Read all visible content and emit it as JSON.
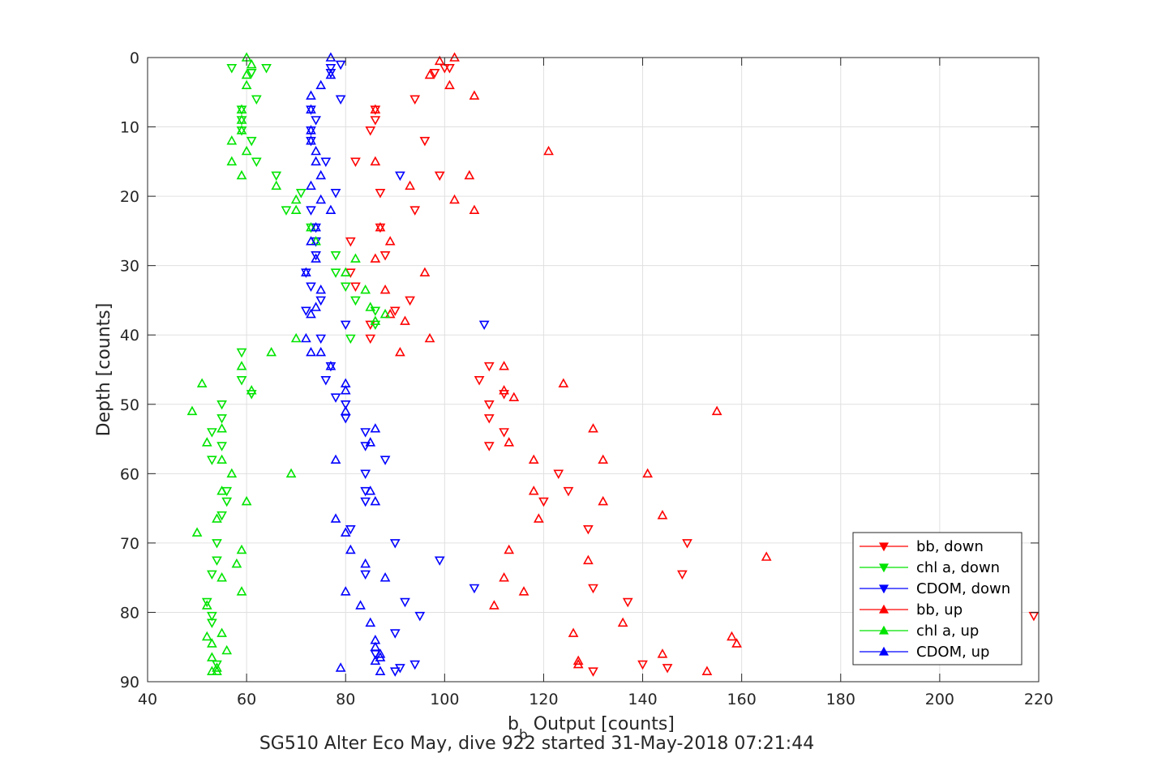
{
  "chart_data": {
    "type": "scatter",
    "title": "",
    "subtitle": "SG510 Alter Eco May, dive 922 started 31-May-2018 07:21:44",
    "xlabel_main": "b",
    "xlabel_sub": "b",
    "xlabel_rest": " Output [counts]",
    "ylabel": "Depth [counts]",
    "xlim": [
      40,
      220
    ],
    "ylim": [
      0,
      90
    ],
    "y_reversed": true,
    "grid": true,
    "legend_position": "bottom-right",
    "xticks": [
      "40",
      "60",
      "80",
      "100",
      "120",
      "140",
      "160",
      "180",
      "200",
      "220"
    ],
    "yticks": [
      "0",
      "10",
      "20",
      "30",
      "40",
      "50",
      "60",
      "70",
      "80",
      "90"
    ],
    "xtick_values": [
      40,
      60,
      80,
      100,
      120,
      140,
      160,
      180,
      200,
      220
    ],
    "ytick_values": [
      0,
      10,
      20,
      30,
      40,
      50,
      60,
      70,
      80,
      90
    ],
    "series": [
      {
        "name": "bb, down",
        "color": "#ff0000",
        "marker": "triangle-down",
        "points": [
          [
            100,
            1.5
          ],
          [
            101,
            1.5
          ],
          [
            98,
            2.2
          ],
          [
            94,
            6
          ],
          [
            86,
            7.5
          ],
          [
            86,
            9
          ],
          [
            85,
            10.5
          ],
          [
            96,
            12
          ],
          [
            82,
            15
          ],
          [
            99,
            17
          ],
          [
            87,
            19.5
          ],
          [
            94,
            22
          ],
          [
            87,
            24.5
          ],
          [
            81,
            26.5
          ],
          [
            88,
            28.5
          ],
          [
            81,
            31
          ],
          [
            82,
            33
          ],
          [
            93,
            35
          ],
          [
            90,
            36.5
          ],
          [
            85,
            38.5
          ],
          [
            85,
            40.5
          ],
          [
            109,
            44.5
          ],
          [
            107,
            46.5
          ],
          [
            112,
            48.5
          ],
          [
            109,
            50
          ],
          [
            109,
            52
          ],
          [
            112,
            54
          ],
          [
            109,
            56
          ],
          [
            123,
            60
          ],
          [
            125,
            62.5
          ],
          [
            120,
            64
          ],
          [
            129,
            68
          ],
          [
            149,
            70
          ],
          [
            148,
            74.5
          ],
          [
            130,
            76.5
          ],
          [
            137,
            78.5
          ],
          [
            219,
            80.5
          ],
          [
            140,
            87.5
          ],
          [
            145,
            88
          ],
          [
            130,
            88.5
          ]
        ]
      },
      {
        "name": "chl a, down",
        "color": "#00e400",
        "marker": "triangle-down",
        "points": [
          [
            57,
            1.5
          ],
          [
            64,
            1.5
          ],
          [
            61,
            2.2
          ],
          [
            62,
            6
          ],
          [
            59,
            7.5
          ],
          [
            59,
            9
          ],
          [
            59,
            10.5
          ],
          [
            61,
            12
          ],
          [
            62,
            15
          ],
          [
            66,
            17
          ],
          [
            71,
            19.5
          ],
          [
            68,
            22
          ],
          [
            73,
            24.5
          ],
          [
            74,
            26.5
          ],
          [
            78,
            28.5
          ],
          [
            78,
            31
          ],
          [
            80,
            33
          ],
          [
            82,
            35
          ],
          [
            86,
            36.5
          ],
          [
            86,
            38.5
          ],
          [
            81,
            40.5
          ],
          [
            59,
            42.5
          ],
          [
            59,
            46.5
          ],
          [
            61,
            48.5
          ],
          [
            55,
            50
          ],
          [
            55,
            52
          ],
          [
            53,
            54
          ],
          [
            55,
            56
          ],
          [
            53,
            58
          ],
          [
            56,
            62.5
          ],
          [
            56,
            64
          ],
          [
            55,
            66
          ],
          [
            54,
            70
          ],
          [
            54,
            72.5
          ],
          [
            53,
            74.5
          ],
          [
            52,
            78.5
          ],
          [
            53,
            80.5
          ],
          [
            53,
            81.5
          ],
          [
            54,
            87.5
          ]
        ]
      },
      {
        "name": "CDOM, down",
        "color": "#0000ff",
        "marker": "triangle-down",
        "points": [
          [
            77,
            1.5
          ],
          [
            79,
            1
          ],
          [
            77,
            2.2
          ],
          [
            79,
            6
          ],
          [
            73,
            7.5
          ],
          [
            74,
            9
          ],
          [
            73,
            10.5
          ],
          [
            73,
            12
          ],
          [
            76,
            15
          ],
          [
            91,
            17
          ],
          [
            78,
            19.5
          ],
          [
            73,
            22
          ],
          [
            74,
            24.5
          ],
          [
            74,
            26.5
          ],
          [
            74,
            28.5
          ],
          [
            72,
            31
          ],
          [
            73,
            33
          ],
          [
            75,
            35
          ],
          [
            72,
            36.5
          ],
          [
            80,
            38.5
          ],
          [
            108,
            38.5
          ],
          [
            75,
            40.5
          ],
          [
            77,
            44.5
          ],
          [
            76,
            46.5
          ],
          [
            78,
            49
          ],
          [
            80,
            50
          ],
          [
            80,
            52
          ],
          [
            84,
            54
          ],
          [
            84,
            56
          ],
          [
            88,
            58
          ],
          [
            84,
            60
          ],
          [
            84,
            62.5
          ],
          [
            84,
            64
          ],
          [
            81,
            68
          ],
          [
            90,
            70
          ],
          [
            99,
            72.5
          ],
          [
            84,
            74.5
          ],
          [
            106,
            76.5
          ],
          [
            92,
            78.5
          ],
          [
            95,
            80.5
          ],
          [
            90,
            83
          ],
          [
            86,
            86
          ],
          [
            94,
            87.5
          ],
          [
            91,
            88
          ],
          [
            90,
            88.5
          ]
        ]
      },
      {
        "name": "bb, up",
        "color": "#ff0000",
        "marker": "triangle-up",
        "points": [
          [
            102,
            0
          ],
          [
            99,
            0.5
          ],
          [
            97,
            2.5
          ],
          [
            101,
            4
          ],
          [
            106,
            5.5
          ],
          [
            86,
            7.5
          ],
          [
            121,
            13.5
          ],
          [
            86,
            15
          ],
          [
            105,
            17
          ],
          [
            93,
            18.5
          ],
          [
            102,
            20.5
          ],
          [
            106,
            22
          ],
          [
            87,
            24.5
          ],
          [
            89,
            26.5
          ],
          [
            86,
            29
          ],
          [
            96,
            31
          ],
          [
            88,
            33.5
          ],
          [
            89,
            37
          ],
          [
            92,
            38
          ],
          [
            97,
            40.5
          ],
          [
            91,
            42.5
          ],
          [
            112,
            44.5
          ],
          [
            124,
            47
          ],
          [
            112,
            48
          ],
          [
            114,
            49
          ],
          [
            155,
            51
          ],
          [
            130,
            53.5
          ],
          [
            113,
            55.5
          ],
          [
            132,
            58
          ],
          [
            118,
            58
          ],
          [
            141,
            60
          ],
          [
            118,
            62.5
          ],
          [
            132,
            64
          ],
          [
            144,
            66
          ],
          [
            119,
            66.5
          ],
          [
            113,
            71
          ],
          [
            165,
            72
          ],
          [
            129,
            72.5
          ],
          [
            112,
            75
          ],
          [
            116,
            77
          ],
          [
            110,
            79
          ],
          [
            136,
            81.5
          ],
          [
            126,
            83
          ],
          [
            158,
            83.5
          ],
          [
            159,
            84.5
          ],
          [
            144,
            86
          ],
          [
            127,
            87
          ],
          [
            127,
            87.5
          ],
          [
            153,
            88.5
          ]
        ]
      },
      {
        "name": "chl a, up",
        "color": "#00e400",
        "marker": "triangle-up",
        "points": [
          [
            60,
            0
          ],
          [
            61,
            1
          ],
          [
            60,
            2.5
          ],
          [
            60,
            4
          ],
          [
            59,
            7.5
          ],
          [
            59,
            9
          ],
          [
            59,
            10.5
          ],
          [
            57,
            12
          ],
          [
            60,
            13.5
          ],
          [
            57,
            15
          ],
          [
            59,
            17
          ],
          [
            66,
            18.5
          ],
          [
            70,
            20.5
          ],
          [
            70,
            22
          ],
          [
            73,
            24.5
          ],
          [
            74,
            26.5
          ],
          [
            82,
            29
          ],
          [
            80,
            31
          ],
          [
            84,
            33.5
          ],
          [
            85,
            36
          ],
          [
            88,
            37
          ],
          [
            86,
            38
          ],
          [
            70,
            40.5
          ],
          [
            65,
            42.5
          ],
          [
            59,
            44.5
          ],
          [
            51,
            47
          ],
          [
            61,
            48
          ],
          [
            49,
            51
          ],
          [
            55,
            53.5
          ],
          [
            52,
            55.5
          ],
          [
            55,
            58
          ],
          [
            57,
            60
          ],
          [
            69,
            60
          ],
          [
            55,
            62.5
          ],
          [
            60,
            64
          ],
          [
            54,
            66.5
          ],
          [
            50,
            68.5
          ],
          [
            59,
            71
          ],
          [
            58,
            73
          ],
          [
            55,
            75
          ],
          [
            59,
            77
          ],
          [
            52,
            79
          ],
          [
            55,
            83
          ],
          [
            52,
            83.5
          ],
          [
            53,
            84.5
          ],
          [
            56,
            85.5
          ],
          [
            53,
            86.5
          ],
          [
            54,
            88
          ],
          [
            54,
            88.5
          ],
          [
            53,
            88.5
          ]
        ]
      },
      {
        "name": "CDOM, up",
        "color": "#0000ff",
        "marker": "triangle-up",
        "points": [
          [
            77,
            0
          ],
          [
            77,
            2.5
          ],
          [
            75,
            4
          ],
          [
            73,
            5.5
          ],
          [
            73,
            7.5
          ],
          [
            73,
            10.5
          ],
          [
            73,
            12
          ],
          [
            74,
            13.5
          ],
          [
            74,
            15
          ],
          [
            75,
            17
          ],
          [
            73,
            18.5
          ],
          [
            75,
            20.5
          ],
          [
            77,
            22
          ],
          [
            74,
            24.5
          ],
          [
            73,
            26.5
          ],
          [
            74,
            29
          ],
          [
            72,
            31
          ],
          [
            75,
            33.5
          ],
          [
            74,
            36
          ],
          [
            73,
            37
          ],
          [
            72,
            40.5
          ],
          [
            73,
            42.5
          ],
          [
            75,
            42.5
          ],
          [
            77,
            44.5
          ],
          [
            80,
            47
          ],
          [
            80,
            48
          ],
          [
            80,
            51
          ],
          [
            86,
            53.5
          ],
          [
            85,
            55.5
          ],
          [
            78,
            58
          ],
          [
            85,
            62.5
          ],
          [
            86,
            64
          ],
          [
            78,
            66.5
          ],
          [
            80,
            68.5
          ],
          [
            81,
            71
          ],
          [
            84,
            73
          ],
          [
            88,
            75
          ],
          [
            80,
            77
          ],
          [
            83,
            79
          ],
          [
            85,
            81.5
          ],
          [
            86,
            84
          ],
          [
            86,
            85
          ],
          [
            87,
            86
          ],
          [
            87,
            86.5
          ],
          [
            86,
            87
          ],
          [
            79,
            88
          ],
          [
            87,
            88.5
          ]
        ]
      }
    ]
  }
}
